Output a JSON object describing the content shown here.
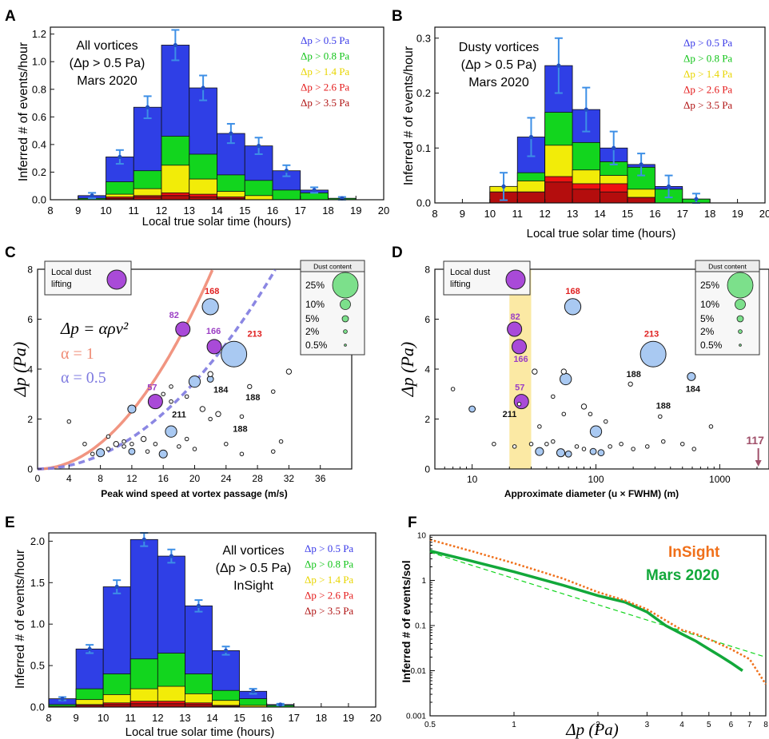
{
  "colors": {
    "blue": "#2f3fe6",
    "green": "#12d51e",
    "yellow": "#f2ec08",
    "red": "#ee1111",
    "darkred": "#b40d0d",
    "errbar": "#3d8fe6",
    "labelblue": "#3a3ae8",
    "labelgreen": "#13c41a",
    "labelyellow": "#e8d500",
    "labelred": "#e41a1a",
    "labeldarkred": "#b01313",
    "salmon": "#ef8a73",
    "lavender": "#7e7ae0",
    "purple": "#a94ad8",
    "lightblue": "#a9c9f2",
    "mintgreen": "#7ce08b",
    "sandyellow": "#fbe79a",
    "insight": "#f0701a",
    "mars2020": "#12a83a",
    "mauve": "#a0506a"
  },
  "legend_thresholds": [
    "Δp > 0.5 Pa",
    "Δp > 0.8 Pa",
    "Δp > 1.4 Pa",
    "Δp > 2.6 Pa",
    "Δp > 3.5 Pa"
  ],
  "panels": {
    "A": {
      "letter": "A",
      "label_lines": [
        "All vortices",
        "(Δp > 0.5 Pa)",
        "Mars 2020"
      ]
    },
    "B": {
      "letter": "B",
      "label_lines": [
        "Dusty vortices",
        "(Δp > 0.5 Pa)",
        "Mars 2020"
      ]
    },
    "C": {
      "letter": "C",
      "inset_label": [
        "Local dust",
        "lifting"
      ],
      "formula": "Δp = αρv²",
      "alpha1": "α = 1",
      "alpha05": "α = 0.5"
    },
    "D": {
      "letter": "D",
      "inset_label": [
        "Local dust",
        "lifting"
      ]
    },
    "E": {
      "letter": "E",
      "label_lines": [
        "All vortices",
        "(Δp > 0.5 Pa)",
        "InSight"
      ]
    },
    "F": {
      "letter": "F",
      "series_insight": "InSight",
      "series_mars2020": "Mars 2020"
    }
  },
  "dust_legend": {
    "title": "Dust content",
    "items": [
      "25%",
      "10%",
      "5%",
      "2%",
      "0.5%"
    ]
  },
  "chart_data": [
    {
      "panel": "A",
      "type": "bar",
      "xlabel": "Local true solar time (hours)",
      "ylabel": "Inferred # of events/hour",
      "xlim": [
        8,
        20
      ],
      "ylim": [
        0,
        1.25
      ],
      "xticks": [
        8,
        9,
        10,
        11,
        12,
        13,
        14,
        15,
        16,
        17,
        18,
        19,
        20
      ],
      "yticks": [
        "0.0",
        "0.2",
        "0.4",
        "0.6",
        "0.8",
        "1.0",
        "1.2"
      ],
      "bins": [
        9,
        10,
        11,
        12,
        13,
        14,
        15,
        16,
        17,
        18
      ],
      "series": [
        {
          "threshold": "0.5",
          "values": [
            0.03,
            0.31,
            0.67,
            1.12,
            0.81,
            0.48,
            0.39,
            0.21,
            0.07,
            0.01
          ],
          "err": [
            0.02,
            0.05,
            0.08,
            0.11,
            0.09,
            0.07,
            0.06,
            0.04,
            0.02,
            0.01
          ]
        },
        {
          "threshold": "0.8",
          "values": [
            0.01,
            0.13,
            0.21,
            0.46,
            0.33,
            0.18,
            0.14,
            0.07,
            0.05,
            0.01
          ]
        },
        {
          "threshold": "1.4",
          "values": [
            0,
            0.04,
            0.08,
            0.25,
            0.15,
            0.06,
            0.03,
            0,
            0,
            0
          ]
        },
        {
          "threshold": "2.6",
          "values": [
            0,
            0.02,
            0.03,
            0.05,
            0.04,
            0.02,
            0,
            0,
            0,
            0
          ]
        },
        {
          "threshold": "3.5",
          "values": [
            0,
            0.01,
            0.02,
            0.03,
            0.02,
            0.01,
            0,
            0,
            0,
            0
          ]
        }
      ]
    },
    {
      "panel": "B",
      "type": "bar",
      "xlabel": "Local true solar time (hours)",
      "ylabel": "Inferred # of events/hour",
      "xlim": [
        8,
        20
      ],
      "ylim": [
        0,
        0.32
      ],
      "xticks": [
        8,
        9,
        10,
        11,
        12,
        13,
        14,
        15,
        16,
        17,
        18,
        19,
        20
      ],
      "yticks": [
        "0.0",
        "0.1",
        "0.2",
        "0.3"
      ],
      "bins": [
        10,
        11,
        12,
        13,
        14,
        15,
        16,
        17
      ],
      "series": [
        {
          "threshold": "0.5",
          "values": [
            0.03,
            0.12,
            0.25,
            0.17,
            0.1,
            0.07,
            0.03,
            0.007
          ],
          "err": [
            0.025,
            0.035,
            0.05,
            0.04,
            0.03,
            0.02,
            0.02,
            0.01
          ]
        },
        {
          "threshold": "0.8",
          "values": [
            0.03,
            0.055,
            0.165,
            0.11,
            0.075,
            0.065,
            0.025,
            0.007
          ]
        },
        {
          "threshold": "1.4",
          "values": [
            0.03,
            0.04,
            0.105,
            0.06,
            0.05,
            0.025,
            0,
            0
          ]
        },
        {
          "threshold": "2.6",
          "values": [
            0.02,
            0.02,
            0.048,
            0.035,
            0.035,
            0.01,
            0,
            0
          ]
        },
        {
          "threshold": "3.5",
          "values": [
            0.02,
            0.02,
            0.038,
            0.025,
            0.02,
            0.01,
            0,
            0
          ]
        }
      ]
    },
    {
      "panel": "C",
      "type": "scatter",
      "xlabel": "Peak wind speed at vortex passage (m/s)",
      "ylabel": "Δp (Pa)",
      "xlim": [
        0,
        40
      ],
      "ylim": [
        0,
        8
      ],
      "xticks": [
        0,
        4,
        8,
        12,
        16,
        20,
        24,
        28,
        32,
        36
      ],
      "yticks": [
        0,
        2,
        4,
        6,
        8
      ],
      "curves": [
        {
          "alpha": 1
        },
        {
          "alpha": 0.5
        }
      ],
      "points": [
        {
          "x": 22,
          "y": 6.5,
          "dust": 10,
          "label": "168"
        },
        {
          "x": 18.5,
          "y": 5.6,
          "dust": 5,
          "local": true,
          "label": "82"
        },
        {
          "x": 22.5,
          "y": 4.9,
          "dust": 5,
          "local": true,
          "label": "166"
        },
        {
          "x": 25,
          "y": 4.6,
          "dust": 25,
          "label": "213"
        },
        {
          "x": 15,
          "y": 2.7,
          "dust": 5,
          "local": true,
          "label": "57"
        },
        {
          "x": 17,
          "y": 2.7,
          "dust": 0.5,
          "label": "211"
        },
        {
          "x": 22,
          "y": 3.6,
          "dust": 1.5,
          "label": "184"
        },
        {
          "x": 27,
          "y": 3.3,
          "dust": 0.7,
          "label": "188"
        },
        {
          "x": 26,
          "y": 2.1,
          "dust": 0.5,
          "label": "188"
        },
        {
          "x": 32,
          "y": 3.9,
          "dust": 1
        },
        {
          "x": 20,
          "y": 3.5,
          "dust": 5
        },
        {
          "x": 12,
          "y": 2.4,
          "dust": 2.5
        },
        {
          "x": 17,
          "y": 1.5,
          "dust": 5
        },
        {
          "x": 22,
          "y": 3.8,
          "dust": 1
        },
        {
          "x": 17,
          "y": 3.3,
          "dust": 0.5
        },
        {
          "x": 16,
          "y": 3.0,
          "dust": 0.5
        },
        {
          "x": 19,
          "y": 2.9,
          "dust": 0.5
        },
        {
          "x": 21,
          "y": 2.4,
          "dust": 1
        },
        {
          "x": 23,
          "y": 2.2,
          "dust": 1
        },
        {
          "x": 22,
          "y": 2.0,
          "dust": 0.5
        },
        {
          "x": 8,
          "y": 0.65,
          "dust": 2.5
        },
        {
          "x": 12,
          "y": 0.7,
          "dust": 1.5
        },
        {
          "x": 16,
          "y": 0.6,
          "dust": 2.5
        },
        {
          "x": 13.5,
          "y": 1.2,
          "dust": 1
        },
        {
          "x": 11,
          "y": 1.1,
          "dust": 0.5
        },
        {
          "x": 10,
          "y": 1.0,
          "dust": 1
        },
        {
          "x": 14,
          "y": 0.7,
          "dust": 0.5
        },
        {
          "x": 15,
          "y": 1.0,
          "dust": 0.5
        },
        {
          "x": 18,
          "y": 0.9,
          "dust": 0.5
        },
        {
          "x": 19,
          "y": 1.2,
          "dust": 0.5
        },
        {
          "x": 20,
          "y": 0.8,
          "dust": 0.5
        },
        {
          "x": 24,
          "y": 1.0,
          "dust": 0.5
        },
        {
          "x": 26,
          "y": 0.6,
          "dust": 0.5
        },
        {
          "x": 6,
          "y": 1.0,
          "dust": 0.5
        },
        {
          "x": 7,
          "y": 0.6,
          "dust": 0.5
        },
        {
          "x": 9,
          "y": 0.8,
          "dust": 0.5
        },
        {
          "x": 12,
          "y": 1.0,
          "dust": 0.5
        },
        {
          "x": 4,
          "y": 1.9,
          "dust": 0.5
        },
        {
          "x": 30,
          "y": 3.1,
          "dust": 0.5
        },
        {
          "x": 31,
          "y": 1.1,
          "dust": 0.5
        },
        {
          "x": 30,
          "y": 0.7,
          "dust": 0.5
        },
        {
          "x": 9,
          "y": 1.3,
          "dust": 0.5
        },
        {
          "x": 11,
          "y": 0.9,
          "dust": 0.5
        }
      ]
    },
    {
      "panel": "D",
      "type": "scatter",
      "xlabel": "Approximate diameter (u × FWHM) (m)",
      "ylabel": "Δp (Pa)",
      "xscale": "log",
      "xlim": [
        5,
        2500
      ],
      "ylim": [
        0,
        8
      ],
      "xticks": [
        10,
        100,
        1000
      ],
      "yticks": [
        0,
        2,
        4,
        6,
        8
      ],
      "band": [
        20,
        30
      ],
      "arrow": {
        "x": 2050,
        "label": "117"
      },
      "points": [
        {
          "x": 65,
          "y": 6.5,
          "dust": 10,
          "label": "168"
        },
        {
          "x": 22,
          "y": 5.6,
          "dust": 5,
          "local": true,
          "label": "82"
        },
        {
          "x": 24,
          "y": 4.9,
          "dust": 5,
          "local": true,
          "label": "166"
        },
        {
          "x": 290,
          "y": 4.6,
          "dust": 25,
          "label": "213"
        },
        {
          "x": 25,
          "y": 2.7,
          "dust": 5,
          "local": true,
          "label": "57"
        },
        {
          "x": 24,
          "y": 2.6,
          "dust": 0.5,
          "label": "211"
        },
        {
          "x": 590,
          "y": 3.7,
          "dust": 2.5,
          "label": "184"
        },
        {
          "x": 190,
          "y": 3.4,
          "dust": 0.7,
          "label": "188"
        },
        {
          "x": 330,
          "y": 2.1,
          "dust": 0.5,
          "label": "188"
        },
        {
          "x": 57,
          "y": 3.6,
          "dust": 5
        },
        {
          "x": 32,
          "y": 3.9,
          "dust": 1
        },
        {
          "x": 55,
          "y": 3.9,
          "dust": 1
        },
        {
          "x": 10,
          "y": 2.4,
          "dust": 1.5
        },
        {
          "x": 100,
          "y": 1.5,
          "dust": 5
        },
        {
          "x": 45,
          "y": 2.9,
          "dust": 0.5
        },
        {
          "x": 80,
          "y": 2.5,
          "dust": 1
        },
        {
          "x": 90,
          "y": 2.2,
          "dust": 0.5
        },
        {
          "x": 55,
          "y": 2.2,
          "dust": 0.5
        },
        {
          "x": 120,
          "y": 1.9,
          "dust": 0.5
        },
        {
          "x": 35,
          "y": 1.7,
          "dust": 0.5
        },
        {
          "x": 7,
          "y": 3.2,
          "dust": 0.5
        },
        {
          "x": 15,
          "y": 1.0,
          "dust": 0.5
        },
        {
          "x": 22,
          "y": 0.9,
          "dust": 0.5
        },
        {
          "x": 35,
          "y": 0.7,
          "dust": 2.5
        },
        {
          "x": 52,
          "y": 0.65,
          "dust": 2.5
        },
        {
          "x": 60,
          "y": 0.6,
          "dust": 1.5
        },
        {
          "x": 95,
          "y": 0.7,
          "dust": 1.5
        },
        {
          "x": 110,
          "y": 0.65,
          "dust": 1.5
        },
        {
          "x": 70,
          "y": 0.9,
          "dust": 0.5
        },
        {
          "x": 40,
          "y": 1.0,
          "dust": 0.5
        },
        {
          "x": 45,
          "y": 1.1,
          "dust": 0.5
        },
        {
          "x": 30,
          "y": 1.0,
          "dust": 0.5
        },
        {
          "x": 130,
          "y": 0.9,
          "dust": 0.5
        },
        {
          "x": 160,
          "y": 1.0,
          "dust": 0.5
        },
        {
          "x": 200,
          "y": 0.8,
          "dust": 0.5
        },
        {
          "x": 350,
          "y": 1.1,
          "dust": 0.5
        },
        {
          "x": 500,
          "y": 1.0,
          "dust": 0.5
        },
        {
          "x": 850,
          "y": 1.7,
          "dust": 0.5
        },
        {
          "x": 620,
          "y": 0.8,
          "dust": 0.5
        },
        {
          "x": 260,
          "y": 0.9,
          "dust": 0.5
        },
        {
          "x": 80,
          "y": 0.8,
          "dust": 0.5
        }
      ]
    },
    {
      "panel": "E",
      "type": "bar",
      "xlabel": "Local true solar time (hours)",
      "ylabel": "Inferred # of events/hour",
      "xlim": [
        8,
        20
      ],
      "ylim": [
        0,
        2.1
      ],
      "xticks": [
        8,
        9,
        10,
        11,
        12,
        13,
        14,
        15,
        16,
        17,
        18,
        19,
        20
      ],
      "yticks": [
        "0.0",
        "0.5",
        "1.0",
        "1.5",
        "2.0"
      ],
      "bins": [
        8,
        9,
        10,
        11,
        12,
        13,
        14,
        15,
        16
      ],
      "series": [
        {
          "threshold": "0.5",
          "values": [
            0.1,
            0.7,
            1.45,
            2.02,
            1.82,
            1.22,
            0.68,
            0.19,
            0.03
          ],
          "err": [
            0.02,
            0.05,
            0.08,
            0.08,
            0.08,
            0.07,
            0.05,
            0.03,
            0.01
          ]
        },
        {
          "threshold": "0.8",
          "values": [
            0.03,
            0.22,
            0.4,
            0.58,
            0.65,
            0.4,
            0.2,
            0.1,
            0.02
          ]
        },
        {
          "threshold": "1.4",
          "values": [
            0.01,
            0.09,
            0.15,
            0.22,
            0.25,
            0.16,
            0.08,
            0.02,
            0
          ]
        },
        {
          "threshold": "2.6",
          "values": [
            0,
            0.03,
            0.05,
            0.07,
            0.07,
            0.05,
            0.02,
            0,
            0
          ]
        },
        {
          "threshold": "3.5",
          "values": [
            0,
            0.02,
            0.03,
            0.04,
            0.04,
            0.03,
            0.01,
            0,
            0
          ]
        }
      ]
    },
    {
      "panel": "F",
      "type": "line",
      "xlabel": "Δp (Pa)",
      "ylabel": "Inferred # of events/sol",
      "xscale": "log",
      "yscale": "log",
      "xlim": [
        0.5,
        8
      ],
      "ylim": [
        0.001,
        10
      ],
      "xticks": [
        "0.5",
        "1",
        "2",
        "3",
        "4",
        "5",
        "6",
        "7",
        "8"
      ],
      "yticks": [
        "0.001",
        "0.01",
        "0.1",
        "1",
        "10"
      ],
      "series": [
        {
          "name": "InSight",
          "x": [
            0.5,
            0.7,
            1,
            1.5,
            2,
            2.5,
            3,
            3.5,
            4,
            4.5,
            5,
            6,
            7,
            8
          ],
          "y": [
            8,
            4.5,
            2.4,
            1.1,
            0.55,
            0.36,
            0.23,
            0.13,
            0.08,
            0.065,
            0.05,
            0.03,
            0.018,
            0.005
          ]
        },
        {
          "name": "Mars 2020",
          "x": [
            0.5,
            0.7,
            1,
            1.5,
            2,
            2.5,
            3,
            3.5,
            4,
            4.5,
            5,
            5.5,
            6,
            6.6
          ],
          "y": [
            4.5,
            2.7,
            1.55,
            0.78,
            0.46,
            0.33,
            0.2,
            0.1,
            0.065,
            0.045,
            0.03,
            0.021,
            0.015,
            0.01
          ]
        },
        {
          "x": [
            0.5,
            8
          ],
          "y": [
            4.2,
            0.02
          ]
        }
      ]
    }
  ]
}
